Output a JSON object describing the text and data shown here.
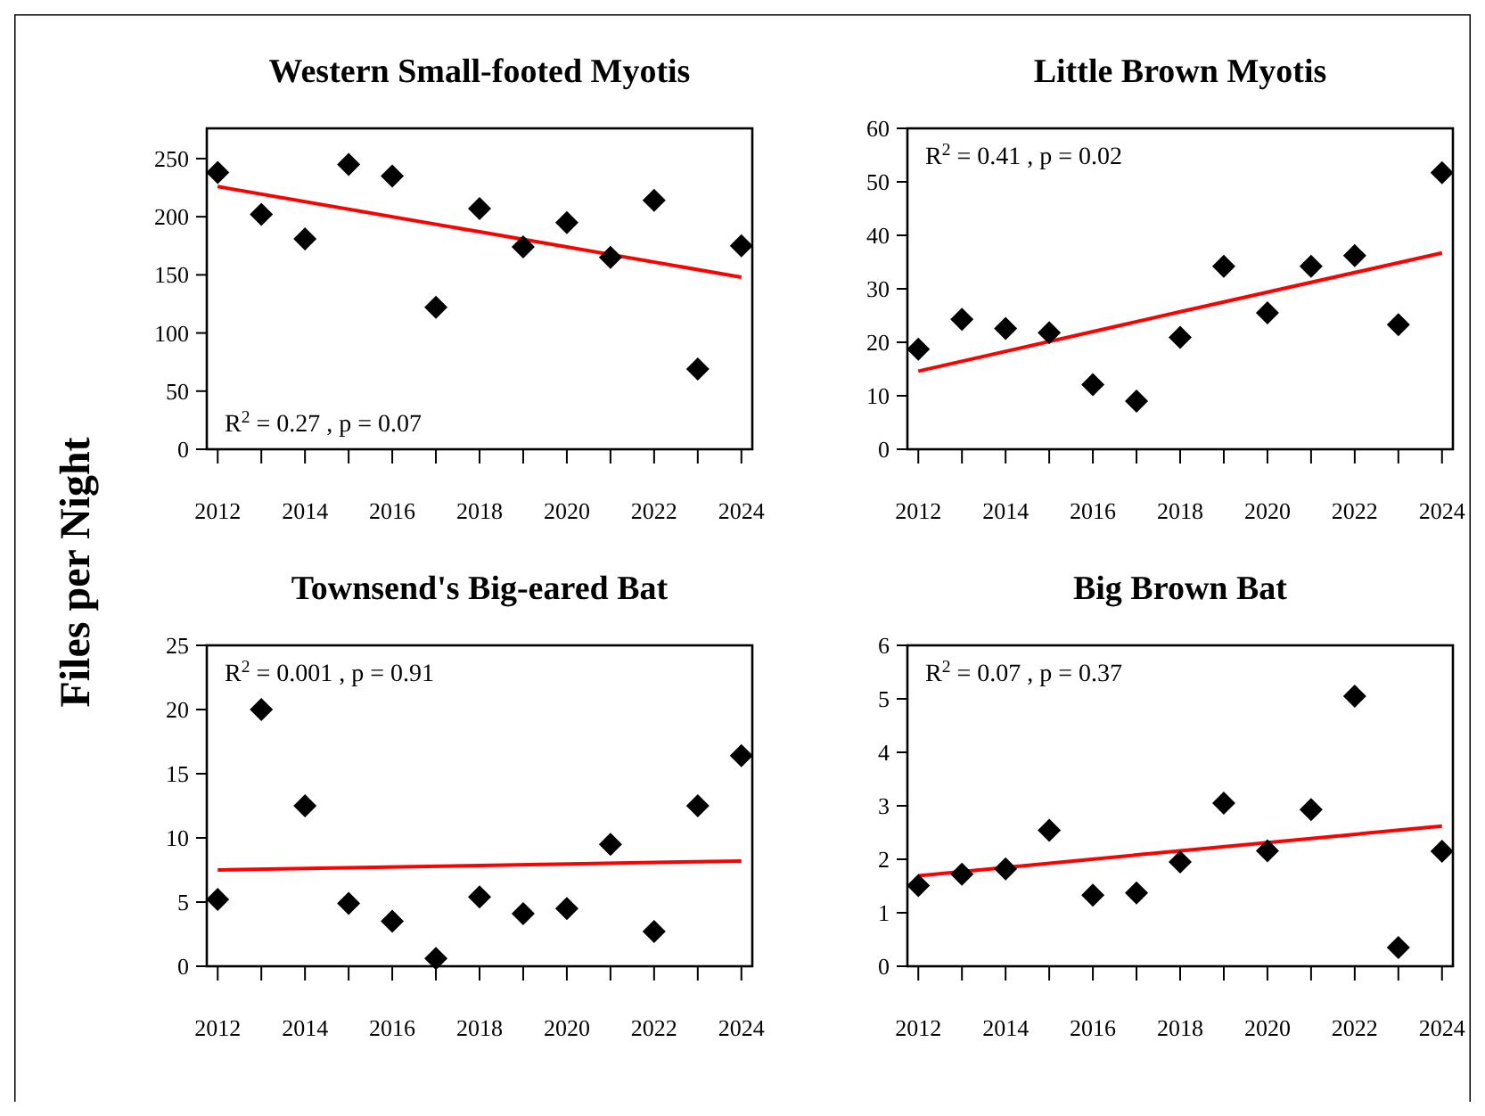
{
  "chart_data": [
    {
      "type": "scatter",
      "title": "Western Small-footed Myotis",
      "ylabel": "Files per Night",
      "grid": false,
      "xlim": [
        2011.75,
        2024.25
      ],
      "xticks": [
        2012,
        {
          "value": 2013,
          "label": null
        },
        2014,
        {
          "value": 2015,
          "label": null
        },
        2016,
        {
          "value": 2017,
          "label": null
        },
        2018,
        {
          "value": 2019,
          "label": null
        },
        2020,
        {
          "value": 2021,
          "label": null
        },
        2022,
        {
          "value": 2023,
          "label": null
        },
        2024
      ],
      "ylim": [
        0,
        276
      ],
      "yticks": [
        0,
        50,
        100,
        150,
        200,
        250
      ],
      "x": [
        2012,
        2013,
        2014,
        2015,
        2016,
        2017,
        2018,
        2019,
        2020,
        2021,
        2022,
        2023,
        2024
      ],
      "series": [
        {
          "marker": "diamond",
          "color": "#000000",
          "values": [
            238,
            202,
            181,
            245,
            235,
            122,
            207,
            174,
            195,
            165,
            214,
            69,
            175
          ]
        },
        {
          "type": "line",
          "color": "#ff0000",
          "x": [
            2012,
            2018,
            2024
          ],
          "values": [
            226,
            187,
            148
          ]
        }
      ],
      "annotations": [
        "R$^{2}$ = 0.27 , p = 0.07"
      ]
    },
    {
      "type": "scatter",
      "title": "Little Brown Myotis",
      "grid": false,
      "xlim": [
        2011.75,
        2024.25
      ],
      "xticks": [
        2012,
        {
          "value": 2013,
          "label": null
        },
        2014,
        {
          "value": 2015,
          "label": null
        },
        2016,
        {
          "value": 2017,
          "label": null
        },
        2018,
        {
          "value": 2019,
          "label": null
        },
        2020,
        {
          "value": 2021,
          "label": null
        },
        2022,
        {
          "value": 2023,
          "label": null
        },
        2024
      ],
      "ylim": [
        0,
        60
      ],
      "yticks": [
        0,
        10,
        20,
        30,
        40,
        50,
        60
      ],
      "x": [
        2012,
        2013,
        2014,
        2015,
        2016,
        2017,
        2018,
        2019,
        2020,
        2021,
        2022,
        2023,
        2024
      ],
      "series": [
        {
          "marker": "diamond",
          "color": "#000000",
          "values": [
            18.7,
            24.3,
            22.6,
            21.8,
            12.1,
            9.0,
            20.9,
            34.2,
            25.5,
            34.2,
            36.2,
            23.3,
            51.7
          ]
        },
        {
          "type": "line",
          "color": "#ff0000",
          "x": [
            2012,
            2018,
            2024
          ],
          "values": [
            14.6,
            25.7,
            36.7
          ]
        }
      ],
      "annotations": [
        "R$^{2}$ = 0.41 , p = 0.02"
      ]
    },
    {
      "type": "scatter",
      "title": "Townsend's Big-eared Bat",
      "grid": false,
      "xlim": [
        2011.75,
        2024.25
      ],
      "xticks": [
        2012,
        {
          "value": 2013,
          "label": null
        },
        2014,
        {
          "value": 2015,
          "label": null
        },
        2016,
        {
          "value": 2017,
          "label": null
        },
        2018,
        {
          "value": 2019,
          "label": null
        },
        2020,
        {
          "value": 2021,
          "label": null
        },
        2022,
        {
          "value": 2023,
          "label": null
        },
        2024
      ],
      "ylim": [
        0,
        25
      ],
      "yticks": [
        0,
        5,
        10,
        15,
        20,
        25
      ],
      "x": [
        2012,
        2013,
        2014,
        2015,
        2016,
        2017,
        2018,
        2019,
        2020,
        2021,
        2022,
        2023,
        2024
      ],
      "series": [
        {
          "marker": "diamond",
          "color": "#000000",
          "values": [
            5.2,
            20.0,
            12.5,
            4.9,
            3.5,
            0.6,
            5.4,
            4.1,
            4.5,
            9.5,
            2.7,
            12.5,
            16.4
          ]
        },
        {
          "type": "line",
          "color": "#ff0000",
          "x": [
            2012,
            2018,
            2024
          ],
          "values": [
            7.5,
            7.85,
            8.2
          ]
        }
      ],
      "annotations": [
        "R$^{2}$ = 0.001 , p = 0.91"
      ]
    },
    {
      "type": "scatter",
      "title": "Big Brown Bat",
      "grid": false,
      "xlim": [
        2011.75,
        2024.25
      ],
      "xticks": [
        2012,
        {
          "value": 2013,
          "label": null
        },
        2014,
        {
          "value": 2015,
          "label": null
        },
        2016,
        {
          "value": 2017,
          "label": null
        },
        2018,
        {
          "value": 2019,
          "label": null
        },
        2020,
        {
          "value": 2021,
          "label": null
        },
        2022,
        {
          "value": 2023,
          "label": null
        },
        2024
      ],
      "ylim": [
        0,
        6
      ],
      "yticks": [
        0,
        1,
        2,
        3,
        4,
        5,
        6
      ],
      "x": [
        2012,
        2013,
        2014,
        2015,
        2016,
        2017,
        2018,
        2019,
        2020,
        2021,
        2022,
        2023,
        2024
      ],
      "series": [
        {
          "marker": "diamond",
          "color": "#000000",
          "values": [
            1.51,
            1.72,
            1.82,
            2.54,
            1.33,
            1.37,
            1.95,
            3.05,
            2.16,
            2.93,
            5.05,
            0.35,
            2.15
          ]
        },
        {
          "type": "line",
          "color": "#ff0000",
          "x": [
            2012,
            2018,
            2024
          ],
          "values": [
            1.69,
            2.16,
            2.62
          ]
        }
      ],
      "annotations": [
        "R$^{2}$ = 0.07 , p = 0.37"
      ]
    }
  ]
}
